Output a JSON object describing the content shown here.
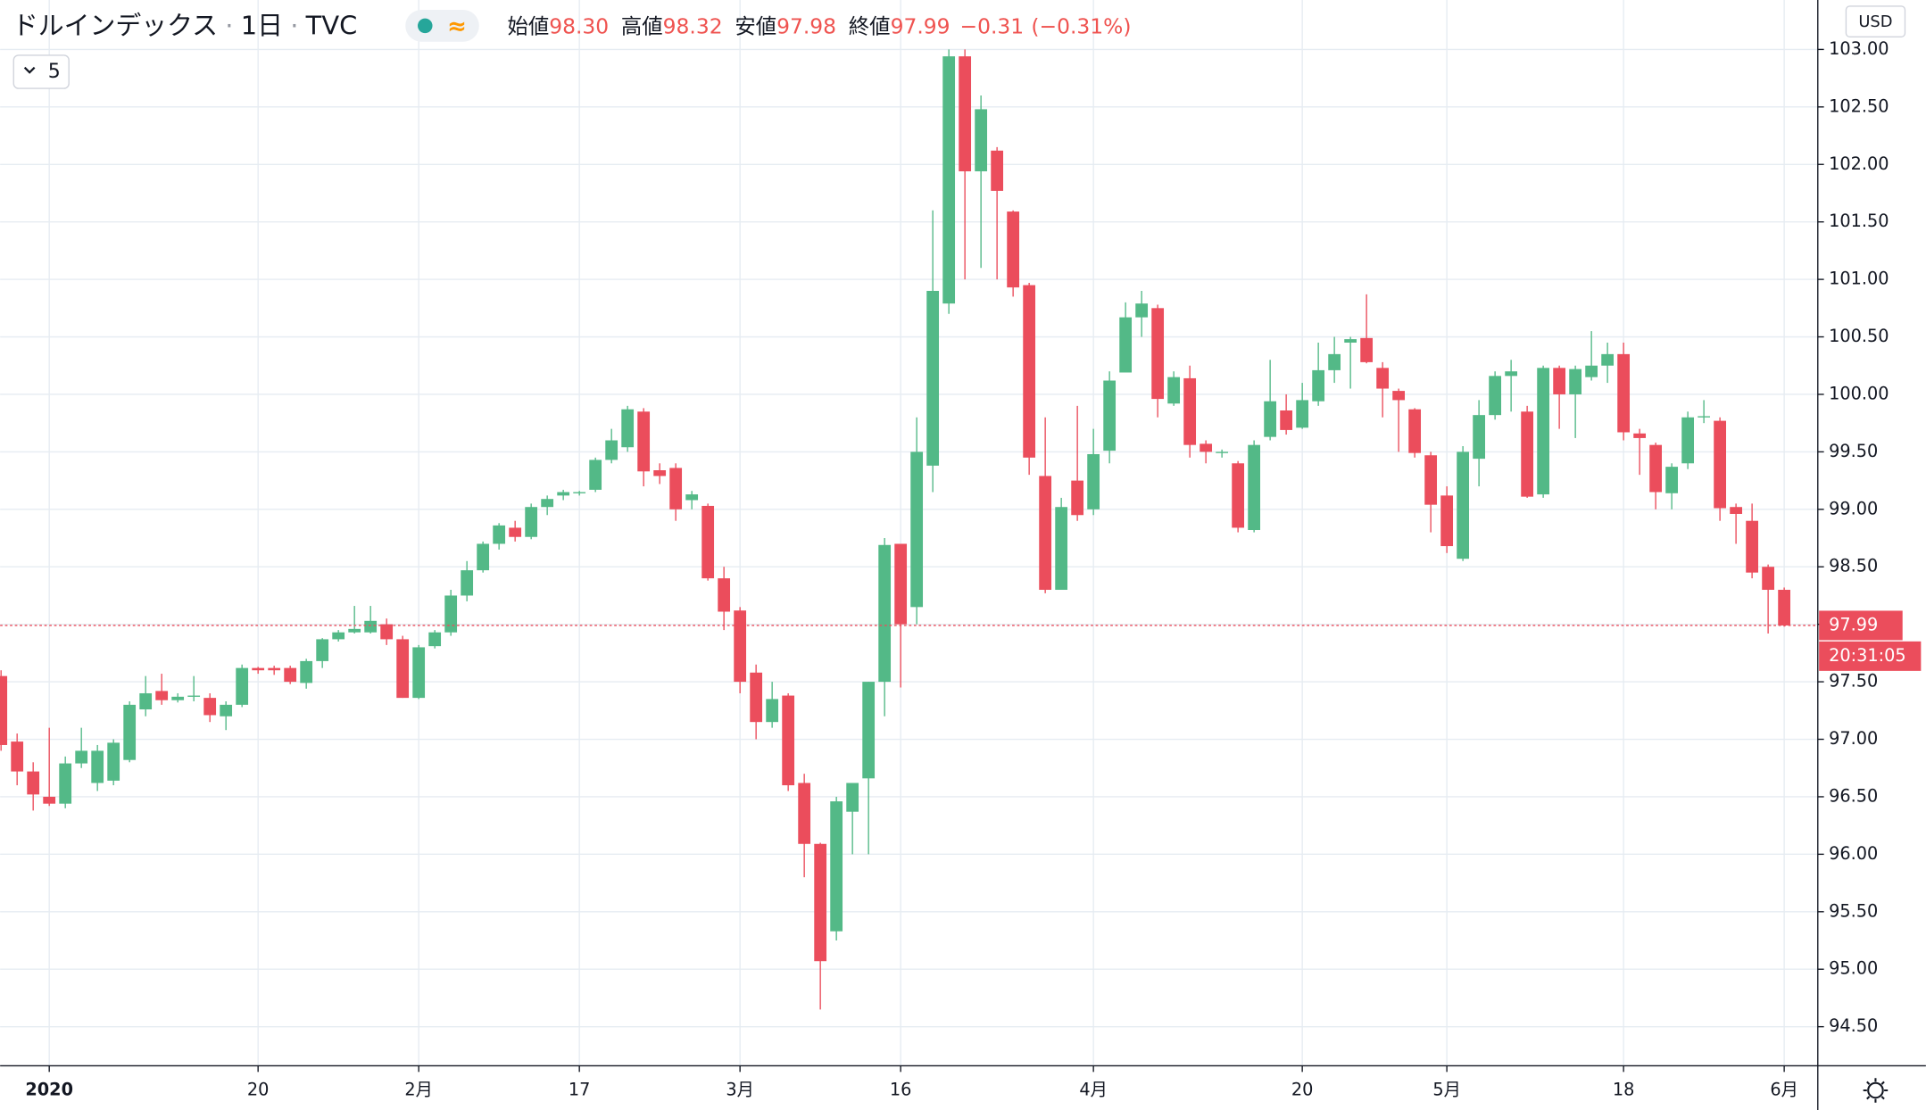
{
  "header": {
    "symbol": "ドルインデックス",
    "interval": "1日",
    "exchange": "TVC",
    "ohlc": [
      {
        "label": "始値",
        "value": "98.30"
      },
      {
        "label": "高値",
        "value": "98.32"
      },
      {
        "label": "安値",
        "value": "97.98"
      },
      {
        "label": "終値",
        "value": "97.99"
      }
    ],
    "change": "−0.31",
    "change_pct": "(−0.31%)"
  },
  "indicator_button": "5",
  "currency": "USD",
  "countdown": "20:31:05",
  "chart_data": {
    "type": "candlestick",
    "up_color": "#53b987",
    "down_color": "#eb4d5c",
    "grid": true,
    "categories": [
      null,
      null,
      null,
      "2020",
      null,
      null,
      null,
      null,
      null,
      null,
      null,
      null,
      null,
      null,
      null,
      null,
      "20",
      null,
      null,
      null,
      null,
      null,
      null,
      null,
      null,
      null,
      "2月",
      null,
      null,
      null,
      null,
      null,
      null,
      null,
      null,
      null,
      "17",
      null,
      null,
      null,
      null,
      null,
      null,
      null,
      null,
      null,
      "3月",
      null,
      null,
      null,
      null,
      null,
      null,
      null,
      null,
      null,
      "16",
      null,
      null,
      null,
      null,
      null,
      null,
      null,
      null,
      null,
      null,
      null,
      "4月",
      null,
      null,
      null,
      null,
      null,
      null,
      null,
      null,
      null,
      null,
      null,
      null,
      "20",
      null,
      null,
      null,
      null,
      null,
      null,
      null,
      null,
      "5月",
      null,
      null,
      null,
      null,
      null,
      null,
      null,
      null,
      null,
      null,
      "18",
      null,
      null,
      null,
      null,
      null,
      null,
      null,
      null,
      null,
      "6月"
    ],
    "open": [
      97.55,
      96.98,
      96.72,
      96.5,
      96.44,
      96.79,
      96.62,
      96.64,
      96.82,
      97.26,
      97.42,
      97.34,
      97.37,
      97.36,
      97.2,
      97.3,
      97.62,
      97.62,
      97.62,
      97.49,
      97.68,
      97.87,
      97.93,
      97.93,
      98.0,
      97.87,
      97.36,
      97.81,
      97.93,
      98.25,
      98.47,
      98.7,
      98.84,
      98.76,
      99.02,
      99.12,
      99.14,
      99.17,
      99.43,
      99.54,
      99.85,
      99.34,
      99.36,
      99.08,
      99.03,
      98.4,
      98.12,
      97.58,
      97.15,
      97.38,
      96.62,
      96.09,
      95.33,
      96.37,
      96.66,
      97.5,
      98.7,
      98.15,
      99.38,
      100.79,
      102.94,
      101.94,
      102.12,
      101.59,
      100.95,
      99.29,
      98.3,
      99.25,
      99.0,
      99.51,
      100.19,
      100.67,
      100.75,
      99.92,
      100.14,
      99.57,
      99.49,
      99.4,
      98.82,
      99.63,
      99.86,
      99.71,
      99.94,
      100.21,
      100.45,
      100.49,
      100.23,
      100.03,
      99.87,
      99.47,
      99.12,
      98.57,
      99.44,
      99.82,
      100.16,
      99.85,
      99.13,
      100.23,
      100.0,
      100.15,
      100.25,
      100.35,
      99.66,
      99.56,
      99.14,
      99.4,
      99.8,
      99.77,
      99.02,
      98.9,
      98.5,
      98.3
    ],
    "high": [
      97.6,
      97.05,
      96.8,
      97.1,
      96.85,
      97.1,
      96.95,
      97.0,
      97.33,
      97.55,
      97.57,
      97.4,
      97.55,
      97.4,
      97.33,
      97.65,
      97.63,
      97.64,
      97.64,
      97.7,
      97.88,
      97.95,
      98.16,
      98.16,
      98.05,
      97.9,
      97.82,
      97.95,
      98.3,
      98.55,
      98.72,
      98.88,
      98.9,
      99.05,
      99.12,
      99.17,
      99.16,
      99.45,
      99.7,
      99.9,
      99.88,
      99.4,
      99.4,
      99.16,
      99.05,
      98.5,
      98.15,
      97.65,
      97.5,
      97.4,
      96.7,
      96.1,
      96.5,
      96.62,
      97.5,
      98.75,
      98.7,
      99.8,
      101.6,
      103.0,
      103.0,
      102.6,
      102.15,
      101.6,
      100.97,
      99.8,
      99.1,
      99.9,
      99.7,
      100.2,
      100.8,
      100.9,
      100.78,
      100.2,
      100.25,
      99.6,
      99.52,
      99.42,
      99.6,
      100.3,
      100.0,
      100.1,
      100.45,
      100.5,
      100.5,
      100.87,
      100.28,
      100.05,
      99.88,
      99.5,
      99.2,
      99.55,
      99.95,
      100.2,
      100.3,
      99.9,
      100.25,
      100.25,
      100.25,
      100.55,
      100.45,
      100.45,
      99.7,
      99.58,
      99.4,
      99.85,
      99.95,
      99.8,
      99.05,
      99.05,
      98.52,
      98.32
    ],
    "low": [
      96.9,
      96.6,
      96.38,
      96.42,
      96.4,
      96.75,
      96.55,
      96.6,
      96.8,
      97.2,
      97.3,
      97.32,
      97.33,
      97.15,
      97.08,
      97.28,
      97.57,
      97.56,
      97.48,
      97.44,
      97.62,
      97.85,
      97.92,
      97.92,
      97.82,
      97.36,
      97.35,
      97.79,
      97.9,
      98.2,
      98.45,
      98.65,
      98.72,
      98.74,
      98.95,
      99.08,
      99.12,
      99.15,
      99.4,
      99.5,
      99.2,
      99.22,
      98.9,
      99.0,
      98.38,
      97.95,
      97.4,
      97.0,
      97.1,
      96.55,
      95.8,
      94.65,
      95.25,
      96.0,
      96.0,
      97.2,
      97.45,
      98.0,
      99.15,
      100.7,
      101.0,
      101.1,
      101.0,
      100.85,
      99.3,
      98.27,
      98.3,
      98.9,
      98.95,
      99.4,
      100.2,
      100.5,
      99.8,
      99.9,
      99.45,
      99.4,
      99.45,
      98.8,
      98.8,
      99.6,
      99.65,
      99.7,
      99.9,
      100.1,
      100.05,
      100.27,
      99.8,
      99.5,
      99.45,
      98.8,
      98.62,
      98.55,
      99.2,
      99.78,
      99.85,
      99.1,
      99.1,
      99.7,
      99.62,
      100.12,
      100.1,
      99.6,
      99.3,
      99.0,
      99.0,
      99.35,
      99.75,
      98.9,
      98.7,
      98.4,
      97.92,
      97.98
    ],
    "close": [
      96.95,
      96.72,
      96.52,
      96.44,
      96.79,
      96.9,
      96.9,
      96.97,
      97.3,
      97.4,
      97.34,
      97.37,
      97.38,
      97.21,
      97.3,
      97.62,
      97.6,
      97.6,
      97.5,
      97.68,
      97.87,
      97.93,
      97.96,
      98.03,
      97.87,
      97.36,
      97.8,
      97.93,
      98.25,
      98.47,
      98.7,
      98.86,
      98.76,
      99.02,
      99.09,
      99.15,
      99.15,
      99.43,
      99.6,
      99.87,
      99.33,
      99.29,
      99.0,
      99.13,
      98.4,
      98.11,
      97.5,
      97.15,
      97.35,
      96.6,
      96.09,
      95.07,
      96.46,
      96.62,
      97.5,
      98.69,
      98.0,
      99.5,
      100.9,
      102.94,
      101.94,
      102.48,
      101.77,
      100.93,
      99.45,
      98.3,
      99.02,
      98.95,
      99.48,
      100.12,
      100.67,
      100.79,
      99.96,
      100.15,
      99.56,
      99.5,
      99.5,
      98.84,
      99.56,
      99.94,
      99.69,
      99.95,
      100.21,
      100.35,
      100.48,
      100.28,
      100.05,
      99.95,
      99.49,
      99.04,
      98.68,
      99.5,
      99.82,
      100.16,
      100.2,
      99.11,
      100.23,
      100.0,
      100.22,
      100.25,
      100.35,
      99.67,
      99.62,
      99.15,
      99.37,
      99.8,
      99.81,
      99.01,
      98.96,
      98.45,
      98.3,
      97.99
    ],
    "ylim": [
      94.16,
      103.43
    ],
    "yticks": [
      {
        "value": 94.5,
        "label": "94.50"
      },
      {
        "value": 95,
        "label": "95.00"
      },
      {
        "value": 95.5,
        "label": "95.50"
      },
      {
        "value": 96,
        "label": "96.00"
      },
      {
        "value": 96.5,
        "label": "96.50"
      },
      {
        "value": 97,
        "label": "97.00"
      },
      {
        "value": 97.5,
        "label": "97.50"
      },
      {
        "value": 98,
        "label": "98.00"
      },
      {
        "value": 98.5,
        "label": "98.50"
      },
      {
        "value": 99,
        "label": "99.00"
      },
      {
        "value": 99.5,
        "label": "99.50"
      },
      {
        "value": 100,
        "label": "100.00"
      },
      {
        "value": 100.5,
        "label": "100.50"
      },
      {
        "value": 101,
        "label": "101.00"
      },
      {
        "value": 101.5,
        "label": "101.50"
      },
      {
        "value": 102,
        "label": "102.00"
      },
      {
        "value": 102.5,
        "label": "102.50"
      },
      {
        "value": 103,
        "label": "103.00"
      }
    ]
  }
}
